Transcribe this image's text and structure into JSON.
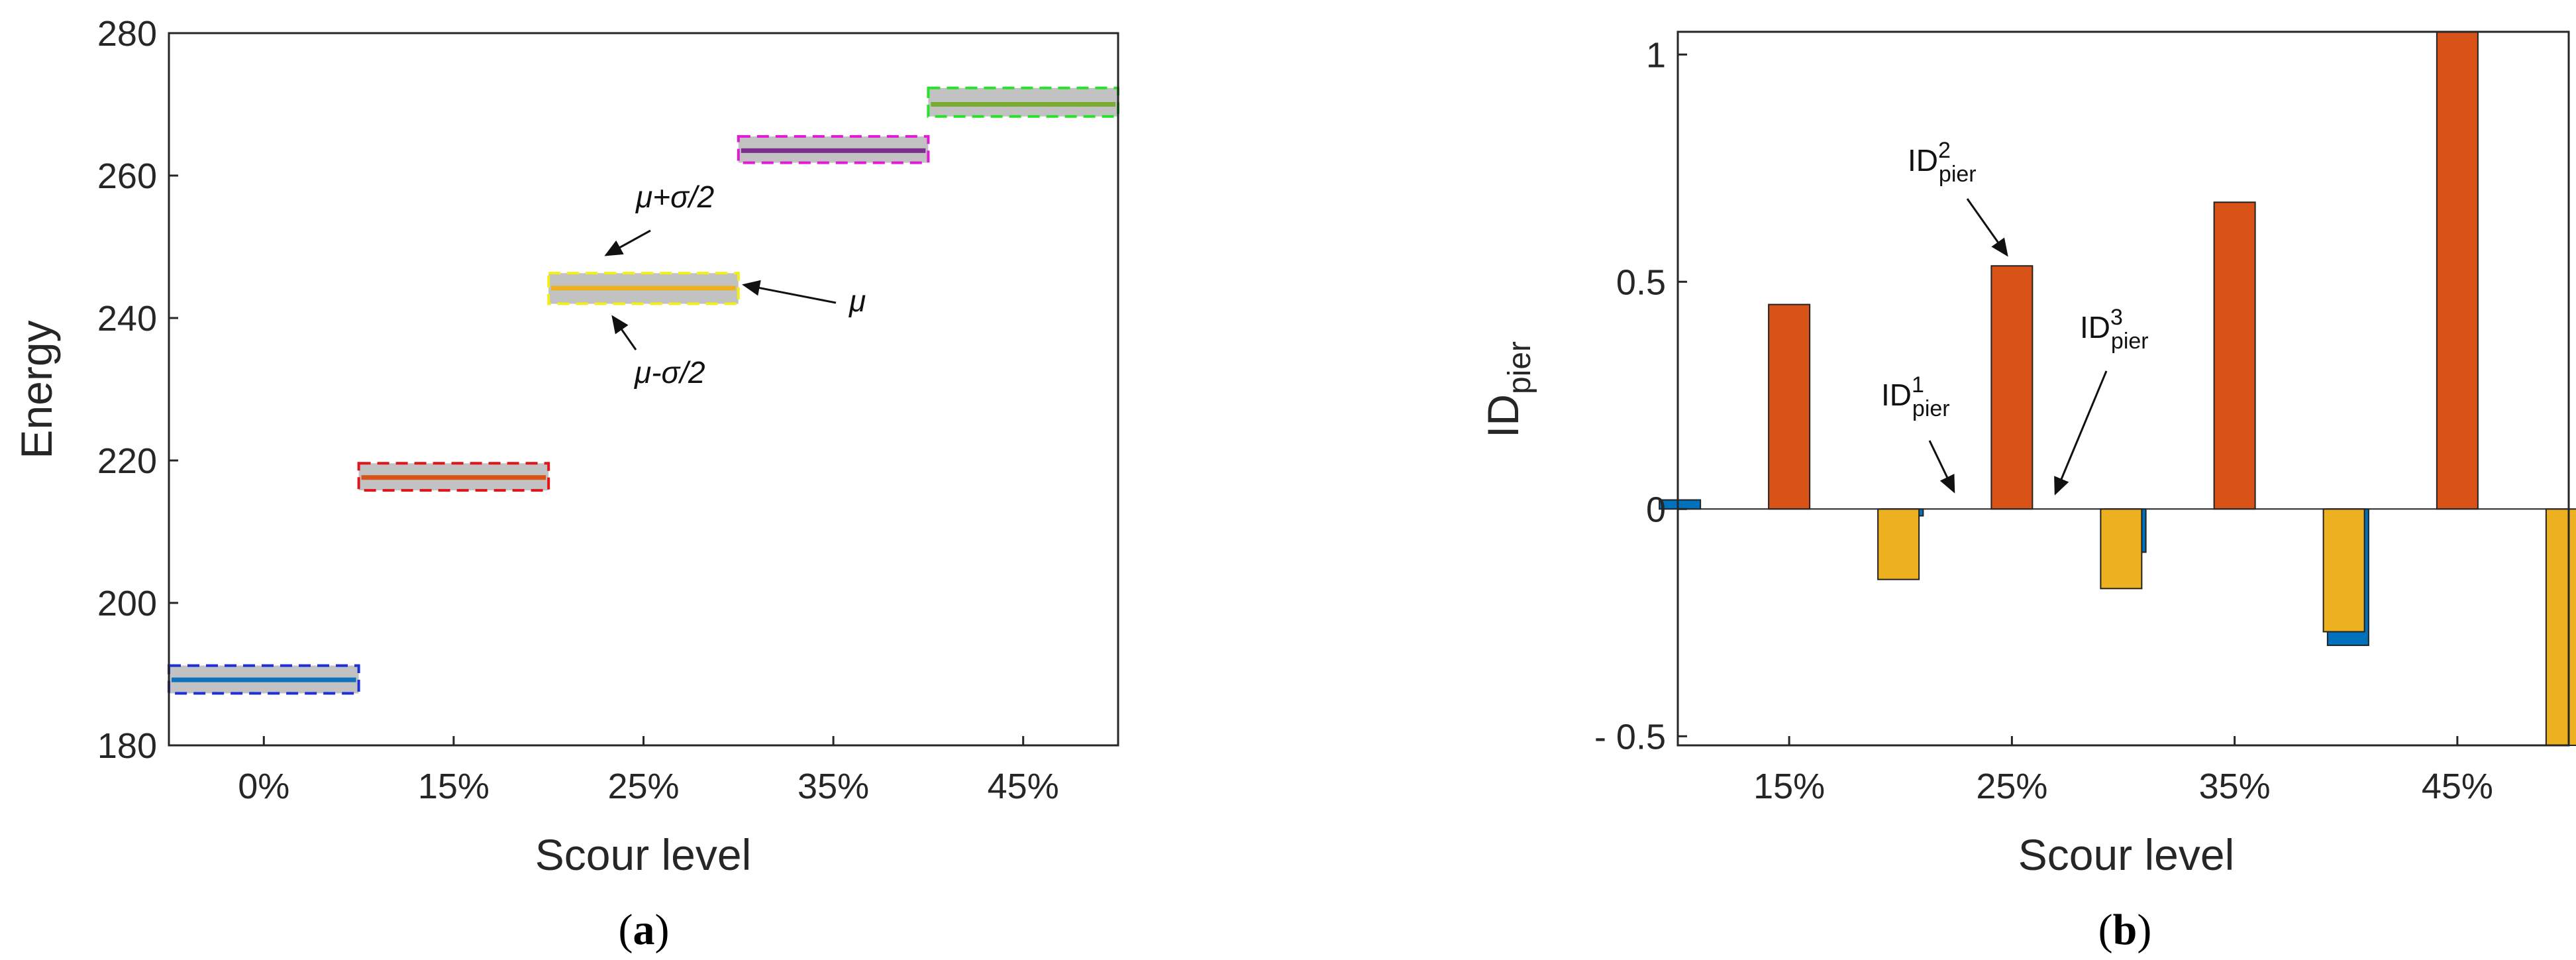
{
  "chart_data": [
    {
      "type": "box",
      "caption_label": "a",
      "xlabel": "Scour level",
      "ylabel": "Energy",
      "categories": [
        "0%",
        "15%",
        "25%",
        "35%",
        "45%"
      ],
      "ylim": [
        180,
        280
      ],
      "yticks": [
        "180",
        "200",
        "220",
        "240",
        "260",
        "280"
      ],
      "boxes": [
        {
          "category": "0%",
          "mean": 189.2,
          "lower": 187.3,
          "upper": 191.2,
          "color": "#1f2fd6"
        },
        {
          "category": "15%",
          "mean": 217.6,
          "lower": 215.8,
          "upper": 219.6,
          "color": "#e0151c"
        },
        {
          "category": "25%",
          "mean": 244.2,
          "lower": 242.0,
          "upper": 246.3,
          "color": "#f2ee18"
        },
        {
          "category": "35%",
          "mean": 263.5,
          "lower": 261.8,
          "upper": 265.5,
          "color": "#e21ad6"
        },
        {
          "category": "45%",
          "mean": 270.0,
          "lower": 268.3,
          "upper": 272.3,
          "color": "#28e12a"
        }
      ],
      "mean_line_colors": [
        "#0f72bd",
        "#d95318",
        "#edb120",
        "#7e2f8e",
        "#77ac30"
      ],
      "annotations": {
        "upper": "μ+σ/2",
        "mean": "μ",
        "lower": "μ-σ/2"
      },
      "grid": false
    },
    {
      "type": "bar",
      "caption_label": "b",
      "xlabel": "Scour level",
      "ylabel_base": "ID",
      "ylabel_sub": "pier",
      "categories": [
        "15%",
        "25%",
        "35%",
        "45%"
      ],
      "ylim": [
        -0.52,
        1.05
      ],
      "yticks": [
        "- 0.5",
        "0",
        "0.5",
        "1"
      ],
      "series": [
        {
          "label_base": "ID",
          "label_sup": "1",
          "label_sub": "pier",
          "color": "#0072bd",
          "values": [
            0.02,
            -0.015,
            -0.095,
            -0.3
          ]
        },
        {
          "label_base": "ID",
          "label_sup": "2",
          "label_sub": "pier",
          "color": "#d95319",
          "values": [
            0.45,
            0.535,
            0.675,
            1.05
          ]
        },
        {
          "label_base": "ID",
          "label_sup": "3",
          "label_sub": "pier",
          "color": "#edb120",
          "values": [
            -0.155,
            -0.175,
            -0.27,
            -0.52
          ]
        }
      ],
      "grid": false
    }
  ]
}
